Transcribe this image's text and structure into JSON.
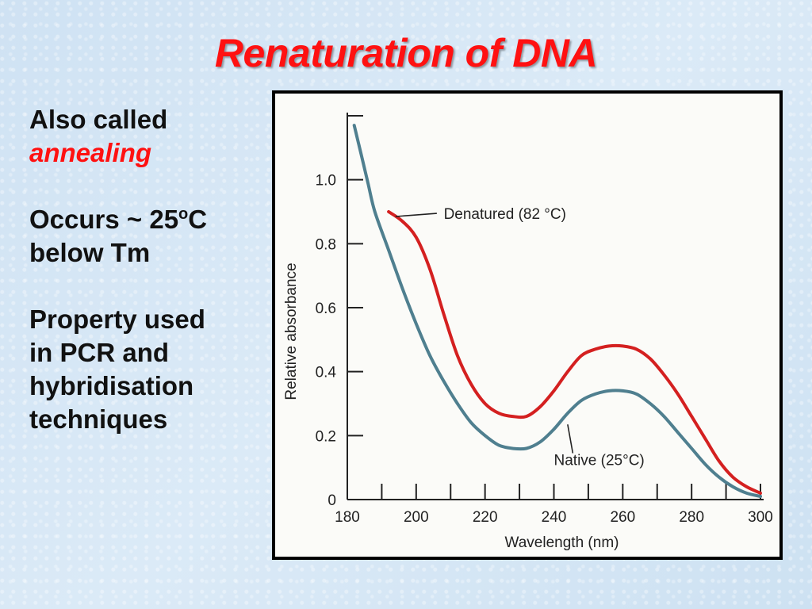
{
  "slide": {
    "title": "Renaturation of DNA",
    "bullets": {
      "b1_line1": "Also called",
      "b1_line2": "annealing",
      "b2_line1_pre": "Occurs ~ 25",
      "b2_sup": "o",
      "b2_line1_post": "C",
      "b2_line2": "below Tm",
      "b3_line1": "Property used",
      "b3_line2": "in PCR and",
      "b3_line3": "hybridisation",
      "b3_line4": "techniques"
    },
    "colors": {
      "title": "#ff1111",
      "annealing": "#ff1111"
    }
  },
  "chart_data": {
    "type": "line",
    "xlabel": "Wavelength (nm)",
    "ylabel": "Relative absorbance",
    "xlim": [
      180,
      300
    ],
    "ylim": [
      0,
      1.2
    ],
    "xticks": [
      180,
      200,
      220,
      240,
      260,
      280,
      300
    ],
    "yticks": [
      0,
      0.2,
      0.4,
      0.6,
      0.8,
      1.0
    ],
    "xtick_labels": [
      "180",
      "200",
      "220",
      "240",
      "260",
      "280",
      "300"
    ],
    "ytick_labels": [
      "0",
      "0.2",
      "0.4",
      "0.6",
      "0.8",
      "1.0"
    ],
    "grid": false,
    "series": [
      {
        "name": "Denatured (82 °C)",
        "color": "#d42020",
        "points": [
          [
            192,
            0.9
          ],
          [
            196,
            0.87
          ],
          [
            200,
            0.82
          ],
          [
            204,
            0.72
          ],
          [
            208,
            0.58
          ],
          [
            212,
            0.45
          ],
          [
            216,
            0.36
          ],
          [
            220,
            0.3
          ],
          [
            224,
            0.27
          ],
          [
            228,
            0.26
          ],
          [
            232,
            0.26
          ],
          [
            236,
            0.29
          ],
          [
            240,
            0.34
          ],
          [
            244,
            0.4
          ],
          [
            248,
            0.45
          ],
          [
            252,
            0.47
          ],
          [
            256,
            0.48
          ],
          [
            260,
            0.48
          ],
          [
            264,
            0.47
          ],
          [
            268,
            0.44
          ],
          [
            272,
            0.39
          ],
          [
            276,
            0.33
          ],
          [
            280,
            0.26
          ],
          [
            284,
            0.19
          ],
          [
            288,
            0.12
          ],
          [
            292,
            0.07
          ],
          [
            296,
            0.04
          ],
          [
            300,
            0.02
          ]
        ]
      },
      {
        "name": "Native (25°C)",
        "color": "#4f7f8f",
        "points": [
          [
            182,
            1.17
          ],
          [
            184,
            1.08
          ],
          [
            186,
            0.99
          ],
          [
            188,
            0.9
          ],
          [
            192,
            0.78
          ],
          [
            196,
            0.66
          ],
          [
            200,
            0.55
          ],
          [
            204,
            0.45
          ],
          [
            208,
            0.37
          ],
          [
            212,
            0.3
          ],
          [
            216,
            0.24
          ],
          [
            220,
            0.2
          ],
          [
            224,
            0.17
          ],
          [
            228,
            0.16
          ],
          [
            232,
            0.16
          ],
          [
            236,
            0.18
          ],
          [
            240,
            0.22
          ],
          [
            244,
            0.27
          ],
          [
            248,
            0.31
          ],
          [
            252,
            0.33
          ],
          [
            256,
            0.34
          ],
          [
            260,
            0.34
          ],
          [
            264,
            0.33
          ],
          [
            268,
            0.3
          ],
          [
            272,
            0.26
          ],
          [
            276,
            0.21
          ],
          [
            280,
            0.16
          ],
          [
            284,
            0.11
          ],
          [
            288,
            0.07
          ],
          [
            292,
            0.04
          ],
          [
            296,
            0.02
          ],
          [
            300,
            0.01
          ]
        ]
      }
    ],
    "annotations": [
      {
        "text": "Denatured (82 °C)",
        "series": 0
      },
      {
        "text": "Native (25°C)",
        "series": 1
      }
    ]
  }
}
